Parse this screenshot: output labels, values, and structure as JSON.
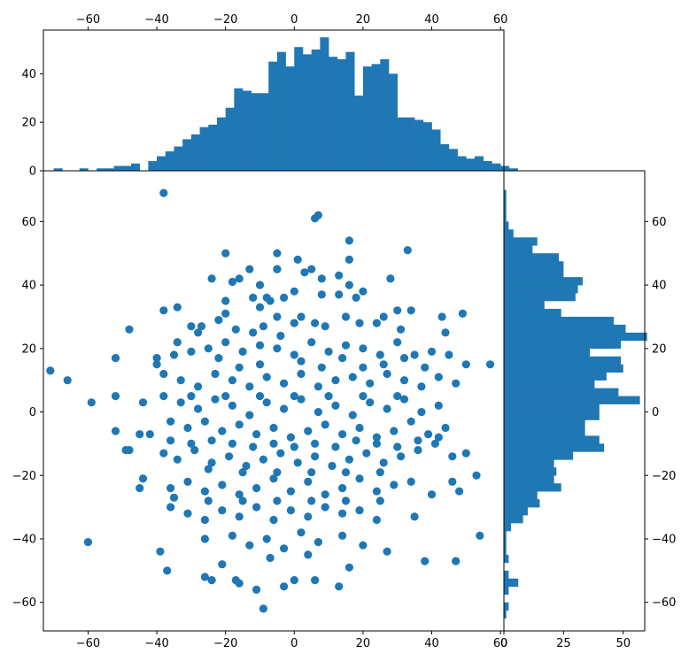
{
  "chart_data": {
    "type": "scatter",
    "title": "",
    "xlabel": "",
    "ylabel": "",
    "color": "#1f77b4",
    "scatter_xlim": [
      -73,
      61
    ],
    "scatter_ylim": [
      -69,
      76
    ],
    "top_hist_ylim": [
      0,
      58
    ],
    "right_hist_xlim": [
      0,
      59
    ],
    "x_ticks": [
      "-60",
      "-40",
      "-20",
      "0",
      "20",
      "40",
      "60"
    ],
    "y_ticks": [
      "60",
      "40",
      "20",
      "0",
      "-20",
      "-40",
      "-60"
    ],
    "top_hist_y_ticks": [
      "0",
      "20",
      "40"
    ],
    "right_hist_x_ticks": [
      "0",
      "25",
      "50"
    ],
    "top_histogram": {
      "bin_edges_start": -70,
      "bin_width": 2.5,
      "counts": [
        1,
        0,
        0,
        1,
        0,
        1,
        1,
        2,
        2,
        3,
        0,
        4,
        6,
        8,
        10,
        13,
        15,
        18,
        19,
        22,
        26,
        34,
        33,
        32,
        32,
        45,
        49,
        43,
        51,
        48,
        50,
        55,
        47,
        46,
        49,
        31,
        43,
        44,
        46,
        40,
        22,
        22,
        21,
        20,
        17,
        11,
        9,
        6,
        5,
        6,
        4,
        3,
        2,
        1,
        0
      ]
    },
    "right_histogram": {
      "bin_edges_start": -65,
      "bin_width": 2.5,
      "counts": [
        1,
        2,
        0,
        2,
        6,
        2,
        0,
        2,
        1,
        1,
        1,
        3,
        8,
        10,
        15,
        14,
        24,
        21,
        22,
        21,
        29,
        42,
        40,
        34,
        34,
        40,
        40,
        57,
        48,
        38,
        43,
        50,
        49,
        36,
        49,
        60,
        51,
        46,
        24,
        17,
        30,
        31,
        33,
        25,
        25,
        23,
        12,
        14,
        4,
        2,
        1,
        1,
        1,
        1,
        0
      ]
    },
    "points_note": "",
    "points": [
      [
        -38,
        69
      ],
      [
        7,
        62
      ],
      [
        6,
        61
      ],
      [
        16,
        54
      ],
      [
        -20,
        50
      ],
      [
        -5,
        50
      ],
      [
        33,
        51
      ],
      [
        1,
        48
      ],
      [
        16,
        48
      ],
      [
        -5,
        45
      ],
      [
        -13,
        45
      ],
      [
        -5,
        45
      ],
      [
        5,
        45
      ],
      [
        -24,
        42
      ],
      [
        -18,
        41
      ],
      [
        13,
        43
      ],
      [
        8,
        42
      ],
      [
        28,
        42
      ],
      [
        -16,
        42
      ],
      [
        -10,
        40
      ],
      [
        3,
        44
      ],
      [
        16,
        40
      ],
      [
        -12,
        36
      ],
      [
        -8,
        36
      ],
      [
        -7,
        35
      ],
      [
        -3,
        36
      ],
      [
        8,
        37
      ],
      [
        13,
        37
      ],
      [
        18,
        36
      ],
      [
        -38,
        32
      ],
      [
        -34,
        33
      ],
      [
        -20,
        31
      ],
      [
        -10,
        33
      ],
      [
        -5,
        30
      ],
      [
        2,
        30
      ],
      [
        6,
        28
      ],
      [
        15,
        30
      ],
      [
        26,
        30
      ],
      [
        34,
        32
      ],
      [
        43,
        30
      ],
      [
        49,
        31
      ],
      [
        -27,
        27
      ],
      [
        -22,
        29
      ],
      [
        -17,
        26
      ],
      [
        -12,
        25
      ],
      [
        -9,
        27
      ],
      [
        0,
        28
      ],
      [
        9,
        27
      ],
      [
        19,
        28
      ],
      [
        24,
        28
      ],
      [
        31,
        26
      ],
      [
        44,
        25
      ],
      [
        -52,
        17
      ],
      [
        -48,
        26
      ],
      [
        -40,
        17
      ],
      [
        -35,
        18
      ],
      [
        -30,
        19
      ],
      [
        -25,
        20
      ],
      [
        -20,
        22
      ],
      [
        -15,
        19
      ],
      [
        -10,
        21
      ],
      [
        -5,
        20
      ],
      [
        0,
        18
      ],
      [
        5,
        22
      ],
      [
        10,
        19
      ],
      [
        15,
        21
      ],
      [
        20,
        20
      ],
      [
        25,
        18
      ],
      [
        30,
        22
      ],
      [
        35,
        18
      ],
      [
        40,
        19
      ],
      [
        45,
        18
      ],
      [
        50,
        15
      ],
      [
        57,
        15
      ],
      [
        -71,
        13
      ],
      [
        -66,
        10
      ],
      [
        -59,
        3
      ],
      [
        -52,
        5
      ],
      [
        -44,
        3
      ],
      [
        -38,
        12
      ],
      [
        -33,
        10
      ],
      [
        -28,
        8
      ],
      [
        -23,
        12
      ],
      [
        -18,
        10
      ],
      [
        -13,
        8
      ],
      [
        -8,
        11
      ],
      [
        -3,
        9
      ],
      [
        2,
        12
      ],
      [
        7,
        8
      ],
      [
        12,
        10
      ],
      [
        17,
        11
      ],
      [
        22,
        9
      ],
      [
        27,
        12
      ],
      [
        32,
        10
      ],
      [
        37,
        8
      ],
      [
        42,
        11
      ],
      [
        47,
        9
      ],
      [
        -38,
        5
      ],
      [
        -33,
        3
      ],
      [
        -28,
        1
      ],
      [
        -23,
        4
      ],
      [
        -18,
        2
      ],
      [
        -13,
        -1
      ],
      [
        -8,
        3
      ],
      [
        -3,
        1
      ],
      [
        2,
        4
      ],
      [
        7,
        0
      ],
      [
        12,
        2
      ],
      [
        17,
        -1
      ],
      [
        22,
        3
      ],
      [
        27,
        1
      ],
      [
        32,
        4
      ],
      [
        37,
        0
      ],
      [
        42,
        2
      ],
      [
        -36,
        -3
      ],
      [
        -31,
        -5
      ],
      [
        -26,
        -3
      ],
      [
        -21,
        -6
      ],
      [
        -16,
        -4
      ],
      [
        -11,
        -7
      ],
      [
        -6,
        -5
      ],
      [
        -1,
        -8
      ],
      [
        4,
        -6
      ],
      [
        9,
        -4
      ],
      [
        14,
        -7
      ],
      [
        19,
        -5
      ],
      [
        24,
        -8
      ],
      [
        29,
        -6
      ],
      [
        34,
        -3
      ],
      [
        39,
        -7
      ],
      [
        44,
        -5
      ],
      [
        -52,
        -6
      ],
      [
        -45,
        -7
      ],
      [
        -49,
        -12
      ],
      [
        -38,
        -13
      ],
      [
        -34,
        -15
      ],
      [
        -29,
        -12
      ],
      [
        -24,
        -16
      ],
      [
        -19,
        -14
      ],
      [
        -14,
        -17
      ],
      [
        -9,
        -15
      ],
      [
        -4,
        -13
      ],
      [
        1,
        -16
      ],
      [
        6,
        -14
      ],
      [
        11,
        -17
      ],
      [
        16,
        -15
      ],
      [
        21,
        -13
      ],
      [
        26,
        -16
      ],
      [
        31,
        -14
      ],
      [
        36,
        -12
      ],
      [
        41,
        -10
      ],
      [
        46,
        -14
      ],
      [
        -44,
        -21
      ],
      [
        -36,
        -24
      ],
      [
        -31,
        -22
      ],
      [
        -26,
        -25
      ],
      [
        -21,
        -23
      ],
      [
        -16,
        -26
      ],
      [
        -11,
        -24
      ],
      [
        -6,
        -21
      ],
      [
        -1,
        -25
      ],
      [
        4,
        -22
      ],
      [
        9,
        -26
      ],
      [
        14,
        -24
      ],
      [
        19,
        -21
      ],
      [
        24,
        -25
      ],
      [
        29,
        -23
      ],
      [
        34,
        -22
      ],
      [
        40,
        -26
      ],
      [
        46,
        -22
      ],
      [
        53,
        -20
      ],
      [
        -36,
        -30
      ],
      [
        -31,
        -32
      ],
      [
        -26,
        -34
      ],
      [
        -21,
        -31
      ],
      [
        -16,
        -33
      ],
      [
        -11,
        -30
      ],
      [
        -6,
        -34
      ],
      [
        -1,
        -31
      ],
      [
        4,
        -33
      ],
      [
        9,
        -30
      ],
      [
        14,
        -32
      ],
      [
        19,
        -31
      ],
      [
        24,
        -34
      ],
      [
        35,
        -33
      ],
      [
        -60,
        -41
      ],
      [
        -26,
        -40
      ],
      [
        -18,
        -39
      ],
      [
        -13,
        -42
      ],
      [
        -8,
        -40
      ],
      [
        -3,
        -43
      ],
      [
        2,
        -38
      ],
      [
        7,
        -41
      ],
      [
        14,
        -39
      ],
      [
        20,
        -42
      ],
      [
        -39,
        -44
      ],
      [
        -37,
        -50
      ],
      [
        -21,
        -48
      ],
      [
        -7,
        -46
      ],
      [
        4,
        -45
      ],
      [
        27,
        -44
      ],
      [
        38,
        -47
      ],
      [
        47,
        -47
      ],
      [
        54,
        -39
      ],
      [
        16,
        -49
      ],
      [
        -26,
        -52
      ],
      [
        -24,
        -53
      ],
      [
        -17,
        -53
      ],
      [
        -16,
        -54
      ],
      [
        -11,
        -56
      ],
      [
        -3,
        -55
      ],
      [
        0,
        -53
      ],
      [
        6,
        -53
      ],
      [
        13,
        -55
      ],
      [
        -9,
        -62
      ],
      [
        -40,
        15
      ],
      [
        -34,
        22
      ],
      [
        -28,
        25
      ],
      [
        -22,
        17
      ],
      [
        -16,
        14
      ],
      [
        -10,
        15
      ],
      [
        -4,
        24
      ],
      [
        2,
        16
      ],
      [
        8,
        14
      ],
      [
        14,
        17
      ],
      [
        20,
        14
      ],
      [
        26,
        15
      ],
      [
        32,
        17
      ],
      [
        38,
        14
      ],
      [
        -42,
        -7
      ],
      [
        -36,
        -9
      ],
      [
        -30,
        -10
      ],
      [
        -24,
        -9
      ],
      [
        -18,
        -10
      ],
      [
        -12,
        -11
      ],
      [
        -6,
        -10
      ],
      [
        0,
        -11
      ],
      [
        6,
        -10
      ],
      [
        12,
        -11
      ],
      [
        18,
        -9
      ],
      [
        24,
        -10
      ],
      [
        30,
        -11
      ],
      [
        36,
        -9
      ],
      [
        42,
        -8
      ],
      [
        -30,
        5
      ],
      [
        -20,
        5
      ],
      [
        -10,
        5
      ],
      [
        0,
        5
      ],
      [
        10,
        5
      ],
      [
        20,
        5
      ],
      [
        30,
        5
      ],
      [
        -25,
        -18
      ],
      [
        -15,
        -19
      ],
      [
        -5,
        -19
      ],
      [
        5,
        -19
      ],
      [
        15,
        -19
      ],
      [
        25,
        -19
      ],
      [
        -35,
        -27
      ],
      [
        -25,
        -28
      ],
      [
        -15,
        -28
      ],
      [
        -5,
        -28
      ],
      [
        5,
        -28
      ],
      [
        15,
        -28
      ],
      [
        25,
        -28
      ],
      [
        -20,
        35
      ],
      [
        0,
        38
      ],
      [
        20,
        38
      ],
      [
        -30,
        27
      ],
      [
        30,
        32
      ],
      [
        -45,
        -24
      ],
      [
        48,
        -25
      ],
      [
        -48,
        -12
      ],
      [
        50,
        -13
      ]
    ]
  }
}
